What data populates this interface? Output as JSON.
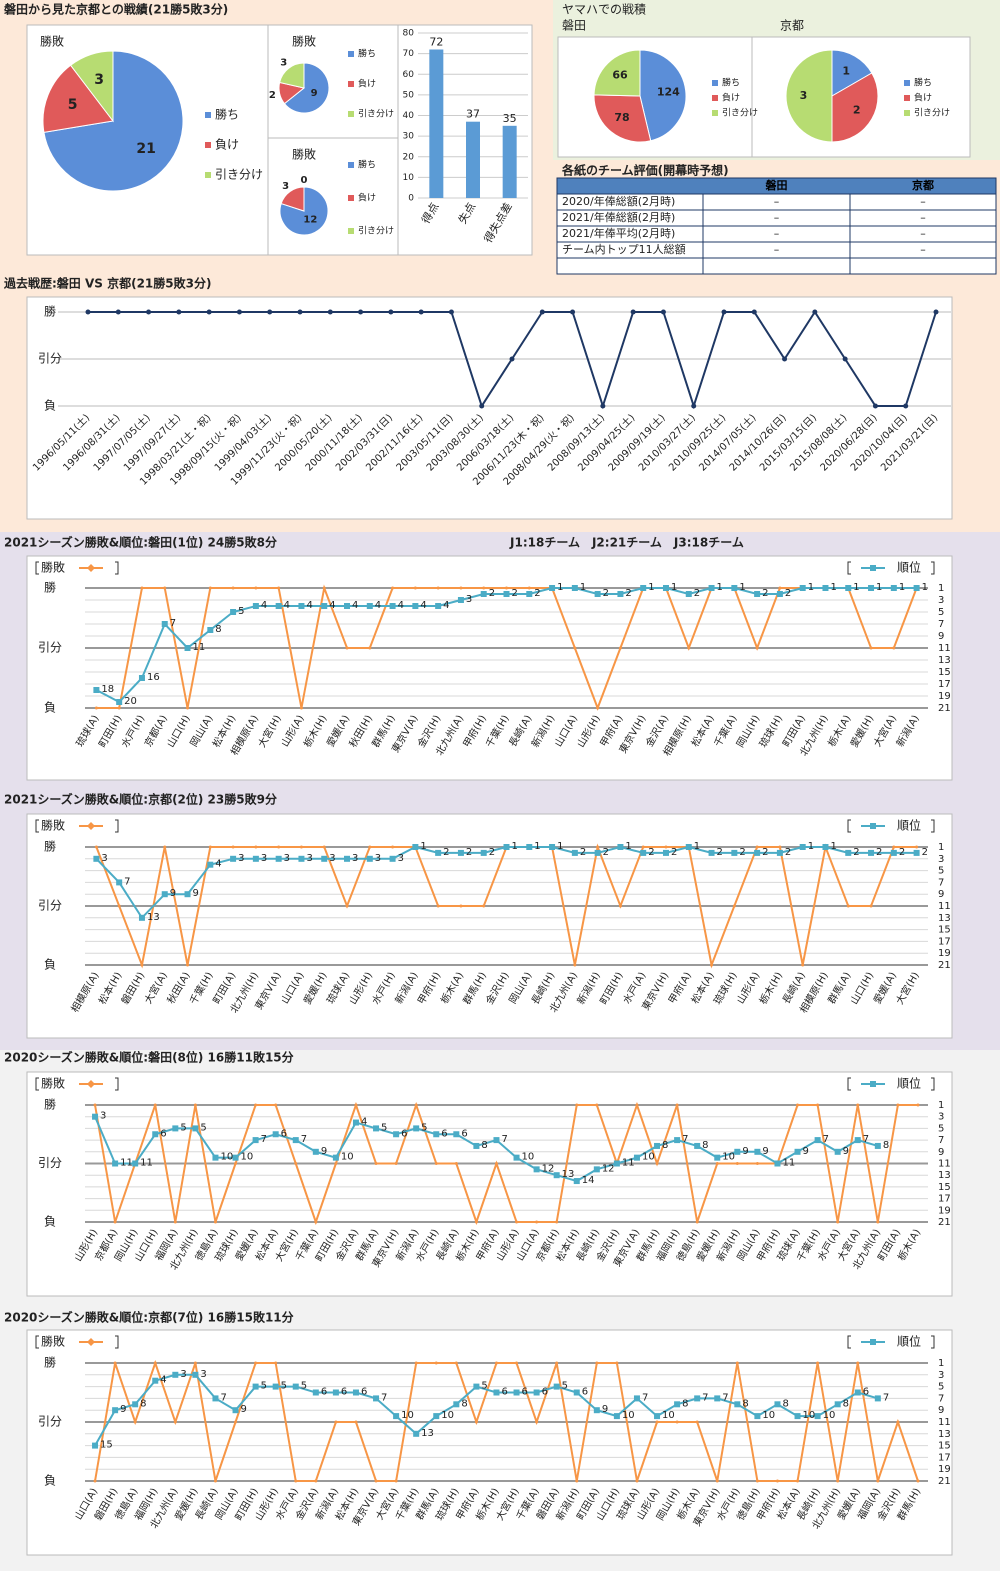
{
  "sections": {
    "head_to_head": "磐田から見た京都との戦績(21勝5敗3分)",
    "yamaha": "ヤマハでの戦積"
  },
  "table": {
    "title": "各紙のチーム評価(開幕時予想)",
    "header": [
      "磐田",
      "京都"
    ],
    "rows": [
      {
        "label": "2020/年俸総額(2月時)",
        "values": [
          "–",
          "–"
        ]
      },
      {
        "label": "2021/年俸総額(2月時)",
        "values": [
          "–",
          "–"
        ]
      },
      {
        "label": "2021/年俸平均(2月時)",
        "values": [
          "–",
          "–"
        ]
      },
      {
        "label": "チーム内トップ11人総額",
        "values": [
          "–",
          "–"
        ]
      }
    ]
  },
  "chart_data": [
    {
      "type": "pie",
      "title": "勝敗",
      "categories": [
        "勝ち",
        "負け",
        "引き分け"
      ],
      "values": [
        21,
        5,
        3
      ],
      "colors": [
        "#5b8ed8",
        "#e05a5a",
        "#b7dc72"
      ]
    },
    {
      "type": "pie",
      "title": "勝敗",
      "categories": [
        "勝ち",
        "負け",
        "引き分け"
      ],
      "values": [
        9,
        2,
        3
      ],
      "colors": [
        "#5b8ed8",
        "#e05a5a",
        "#b7dc72"
      ]
    },
    {
      "type": "pie",
      "title": "勝敗",
      "categories": [
        "勝ち",
        "負け",
        "引き分け"
      ],
      "values": [
        12,
        3,
        0
      ],
      "colors": [
        "#5b8ed8",
        "#e05a5a",
        "#b7dc72"
      ]
    },
    {
      "type": "bar",
      "categories": [
        "得点",
        "失点",
        "得失点差"
      ],
      "values": [
        72,
        37,
        35
      ],
      "color": "#5b9bd5",
      "ylim": [
        0,
        80
      ],
      "yticks": [
        0,
        10,
        20,
        30,
        40,
        50,
        60,
        70,
        80
      ]
    },
    {
      "type": "pie",
      "title": "磐田",
      "categories": [
        "勝ち",
        "負け",
        "引き分け"
      ],
      "values": [
        124,
        78,
        66
      ],
      "colors": [
        "#5b8ed8",
        "#e05a5a",
        "#b7dc72"
      ]
    },
    {
      "type": "pie",
      "title": "京都",
      "categories": [
        "勝ち",
        "負け",
        "引き分け"
      ],
      "values": [
        1,
        2,
        3
      ],
      "colors": [
        "#5b8ed8",
        "#e05a5a",
        "#b7dc72"
      ]
    },
    {
      "type": "line",
      "title": "過去戦歴:磐田 VS 京都(21勝5敗3分)",
      "color": "#1f3864",
      "categories": [
        "1996/05/11(土)",
        "1996/08/31(土)",
        "1997/07/05(土)",
        "1997/09/27(土)",
        "1998/03/21(土・祝)",
        "1998/09/15(火・祝)",
        "1999/04/03(土)",
        "1999/11/23(火・祝)",
        "2000/05/20(土)",
        "2000/11/18(土)",
        "2002/03/31(日)",
        "2002/11/16(土)",
        "2003/05/11(日)",
        "2003/08/30(土)",
        "2006/03/18(土)",
        "2006/11/23(木・祝)",
        "2008/04/29(火・祝)",
        "2008/09/13(土)",
        "2009/04/25(土)",
        "2009/09/19(土)",
        "2010/03/27(土)",
        "2010/09/25(土)",
        "2014/07/05(土)",
        "2014/10/26(日)",
        "2015/03/15(日)",
        "2015/08/08(土)",
        "2020/06/28(日)",
        "2020/10/04(日)",
        "2021/03/21(日)"
      ],
      "values": [
        1,
        1,
        1,
        1,
        1,
        1,
        1,
        1,
        1,
        1,
        1,
        1,
        1,
        -1,
        0,
        1,
        1,
        -1,
        1,
        1,
        -1,
        1,
        1,
        0,
        1,
        0,
        -1,
        -1,
        1
      ],
      "ylim": [
        -1,
        1
      ],
      "yticks": [
        {
          "value": -1,
          "label": "負"
        },
        {
          "value": 0,
          "label": "引分"
        },
        {
          "value": 1,
          "label": "勝"
        }
      ]
    },
    {
      "type": "line",
      "title": "2021シーズン勝敗&順位:磐田(1位) 24勝5敗8分",
      "subtitle": "J1:18チーム　J2:21チーム　J3:18チーム",
      "categories": [
        "琉球(A)",
        "町田(H)",
        "水戸(H)",
        "京都(A)",
        "山口(H)",
        "岡山(A)",
        "松本(H)",
        "相模原(A)",
        "大宮(H)",
        "山形(A)",
        "栃木(H)",
        "愛媛(A)",
        "秋田(H)",
        "群馬(H)",
        "東京V(A)",
        "金沢(H)",
        "北九州(A)",
        "甲府(H)",
        "千葉(H)",
        "長崎(A)",
        "新潟(H)",
        "山口(A)",
        "山形(H)",
        "甲府(A)",
        "東京V(H)",
        "金沢(A)",
        "相模原(H)",
        "松本(A)",
        "千葉(A)",
        "岡山(H)",
        "琉球(H)",
        "町田(A)",
        "北九州(H)",
        "栃木(A)",
        "愛媛(H)",
        "大宮(A)",
        "新潟(A)"
      ],
      "series": [
        {
          "name": "勝敗",
          "color": "#f79646",
          "values": [
            -1,
            -1,
            1,
            1,
            -1,
            1,
            1,
            1,
            1,
            -1,
            1,
            0,
            0,
            1,
            1,
            1,
            1,
            1,
            1,
            1,
            1,
            0,
            -1,
            0,
            1,
            1,
            0,
            1,
            1,
            0,
            1,
            1,
            1,
            1,
            0,
            0,
            1
          ]
        },
        {
          "name": "順位",
          "color": "#4bacc6",
          "axis": "y2",
          "values": [
            18,
            20,
            16,
            7,
            11,
            8,
            5,
            4,
            4,
            4,
            4,
            4,
            4,
            4,
            4,
            4,
            3,
            2,
            2,
            2,
            1,
            1,
            2,
            2,
            1,
            1,
            2,
            1,
            1,
            2,
            2,
            1,
            1,
            1,
            1,
            1,
            1
          ]
        }
      ],
      "ylim": [
        -1,
        1
      ],
      "yticks": [
        {
          "value": -1,
          "label": "負"
        },
        {
          "value": 0,
          "label": "引分"
        },
        {
          "value": 1,
          "label": "勝"
        }
      ],
      "y2lim": [
        21,
        1
      ],
      "y2ticks": [
        1,
        3,
        5,
        7,
        9,
        11,
        13,
        15,
        17,
        19,
        21
      ]
    },
    {
      "type": "line",
      "title": "2021シーズン勝敗&順位:京都(2位) 23勝5敗9分",
      "categories": [
        "相模原(A)",
        "松本(H)",
        "磐田(H)",
        "大宮(A)",
        "秋田(A)",
        "千葉(H)",
        "町田(A)",
        "北九州(H)",
        "東京V(A)",
        "山口(A)",
        "愛媛(H)",
        "琉球(A)",
        "山形(H)",
        "水戸(H)",
        "新潟(A)",
        "甲府(H)",
        "栃木(A)",
        "群馬(H)",
        "金沢(H)",
        "岡山(A)",
        "長崎(H)",
        "北九州(A)",
        "新潟(H)",
        "町田(H)",
        "水戸(A)",
        "東京V(H)",
        "甲府(A)",
        "松本(A)",
        "琉球(H)",
        "山形(A)",
        "栃木(H)",
        "長崎(A)",
        "相模原(H)",
        "群馬(A)",
        "山口(H)",
        "愛媛(A)",
        "大宮(H)"
      ],
      "series": [
        {
          "name": "勝敗",
          "color": "#f79646",
          "values": [
            1,
            0,
            -1,
            1,
            -1,
            1,
            1,
            1,
            1,
            1,
            1,
            0,
            1,
            1,
            1,
            0,
            0,
            0,
            1,
            1,
            1,
            -1,
            1,
            0,
            1,
            1,
            1,
            -1,
            0,
            1,
            1,
            -1,
            1,
            0,
            0,
            1,
            1
          ]
        },
        {
          "name": "順位",
          "color": "#4bacc6",
          "axis": "y2",
          "values": [
            3,
            7,
            13,
            9,
            9,
            4,
            3,
            3,
            3,
            3,
            3,
            3,
            3,
            3,
            1,
            2,
            2,
            2,
            1,
            1,
            1,
            2,
            2,
            1,
            2,
            2,
            1,
            2,
            2,
            2,
            2,
            1,
            1,
            2,
            2,
            2,
            2
          ]
        }
      ],
      "ylim": [
        -1,
        1
      ],
      "yticks": [
        {
          "value": -1,
          "label": "負"
        },
        {
          "value": 0,
          "label": "引分"
        },
        {
          "value": 1,
          "label": "勝"
        }
      ],
      "y2lim": [
        21,
        1
      ],
      "y2ticks": [
        1,
        3,
        5,
        7,
        9,
        11,
        13,
        15,
        17,
        19,
        21
      ]
    },
    {
      "type": "line",
      "title": "2020シーズン勝敗&順位:磐田(8位) 16勝11敗15分",
      "categories": [
        "山形(H)",
        "京都(A)",
        "岡山(H)",
        "山口(H)",
        "福岡(A)",
        "北九州(H)",
        "徳島(A)",
        "琉球(H)",
        "愛媛(A)",
        "松本(A)",
        "大宮(H)",
        "千葉(A)",
        "町田(H)",
        "金沢(A)",
        "群馬(A)",
        "東京V(H)",
        "新潟(A)",
        "水戸(H)",
        "長崎(A)",
        "栃木(H)",
        "甲府(A)",
        "山形(A)",
        "山口(A)",
        "京都(H)",
        "松本(H)",
        "長崎(H)",
        "金沢(H)",
        "東京V(A)",
        "群馬(H)",
        "福岡(H)",
        "徳島(H)",
        "愛媛(H)",
        "新潟(H)",
        "岡山(A)",
        "甲府(H)",
        "琉球(A)",
        "千葉(H)",
        "水戸(A)",
        "大宮(A)",
        "北九州(A)",
        "町田(A)",
        "栃木(A)"
      ],
      "series": [
        {
          "name": "勝敗",
          "color": "#f79646",
          "values": [
            1,
            -1,
            0,
            1,
            -1,
            1,
            -1,
            0,
            1,
            1,
            0,
            -1,
            0,
            1,
            0,
            0,
            1,
            0,
            0,
            -1,
            0,
            -1,
            -1,
            -1,
            1,
            1,
            0,
            1,
            0,
            1,
            -1,
            0,
            0,
            0,
            0,
            1,
            1,
            -1,
            1,
            -1,
            1,
            1
          ]
        },
        {
          "name": "順位",
          "color": "#4bacc6",
          "axis": "y2",
          "values": [
            3,
            11,
            11,
            6,
            5,
            5,
            10,
            10,
            7,
            6,
            7,
            9,
            10,
            4,
            5,
            6,
            5,
            6,
            6,
            8,
            7,
            10,
            12,
            13,
            14,
            12,
            11,
            10,
            8,
            7,
            8,
            10,
            9,
            9,
            11,
            9,
            7,
            9,
            7,
            8,
            null,
            null
          ]
        }
      ],
      "ylim": [
        -1,
        1
      ],
      "yticks": [
        {
          "value": -1,
          "label": "負"
        },
        {
          "value": 0,
          "label": "引分"
        },
        {
          "value": 1,
          "label": "勝"
        }
      ],
      "y2lim": [
        21,
        1
      ],
      "y2ticks": [
        1,
        3,
        5,
        7,
        9,
        11,
        13,
        15,
        17,
        19,
        21
      ]
    },
    {
      "type": "line",
      "title": "2020シーズン勝敗&順位:京都(7位) 16勝15敗11分",
      "categories": [
        "山口(A)",
        "磐田(H)",
        "徳島(A)",
        "福岡(H)",
        "北九州(A)",
        "愛媛(H)",
        "長崎(A)",
        "岡山(A)",
        "町田(H)",
        "山形(H)",
        "水戸(A)",
        "金沢(A)",
        "新潟(A)",
        "松本(H)",
        "東京V(A)",
        "大宮(A)",
        "千葉(H)",
        "群馬(A)",
        "琉球(H)",
        "甲府(A)",
        "栃木(H)",
        "大宮(H)",
        "千葉(A)",
        "磐田(A)",
        "新潟(H)",
        "町田(A)",
        "山口(H)",
        "琉球(A)",
        "山形(A)",
        "岡山(H)",
        "栃木(A)",
        "東京V(H)",
        "水戸(H)",
        "徳島(H)",
        "甲府(H)",
        "松本(A)",
        "長崎(H)",
        "北九州(H)",
        "愛媛(A)",
        "福岡(A)",
        "金沢(H)",
        "群馬(H)"
      ],
      "series": [
        {
          "name": "勝敗",
          "color": "#f79646",
          "values": [
            -1,
            1,
            0,
            1,
            0,
            1,
            -1,
            0,
            1,
            1,
            -1,
            -1,
            0,
            0,
            -1,
            -1,
            1,
            1,
            1,
            0,
            1,
            1,
            0,
            1,
            -1,
            1,
            1,
            -1,
            0,
            0,
            0,
            -1,
            1,
            -1,
            -1,
            -1,
            1,
            -1,
            1,
            -1,
            0,
            -1
          ]
        },
        {
          "name": "順位",
          "color": "#4bacc6",
          "axis": "y2",
          "values": [
            15,
            9,
            8,
            4,
            3,
            3,
            7,
            9,
            5,
            5,
            5,
            6,
            6,
            6,
            7,
            10,
            13,
            10,
            8,
            5,
            6,
            6,
            6,
            5,
            6,
            9,
            10,
            7,
            10,
            8,
            7,
            7,
            8,
            10,
            8,
            10,
            10,
            8,
            6,
            7,
            null,
            null
          ]
        }
      ],
      "ylim": [
        -1,
        1
      ],
      "yticks": [
        {
          "value": -1,
          "label": "負"
        },
        {
          "value": 0,
          "label": "引分"
        },
        {
          "value": 1,
          "label": "勝"
        }
      ],
      "y2lim": [
        21,
        1
      ],
      "y2ticks": [
        1,
        3,
        5,
        7,
        9,
        11,
        13,
        15,
        17,
        19,
        21
      ]
    }
  ]
}
